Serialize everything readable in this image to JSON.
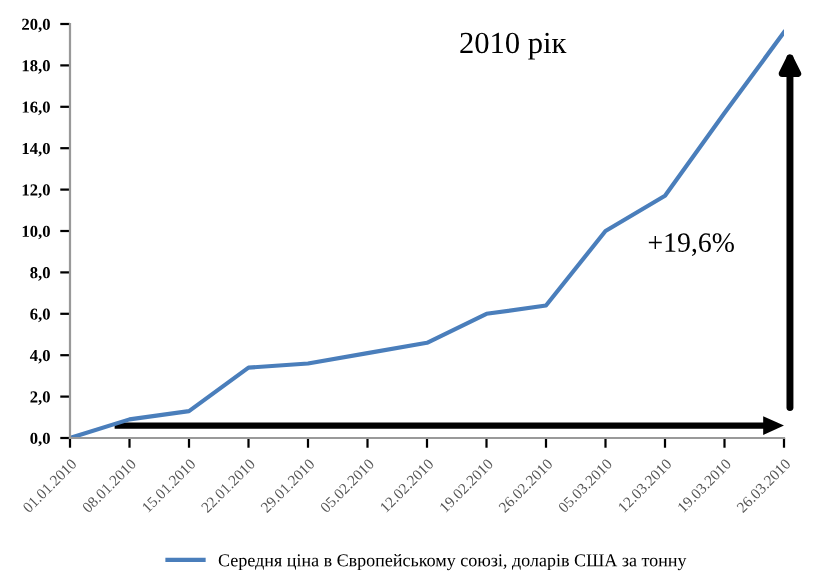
{
  "chart_data": {
    "type": "line",
    "title": "2010 рік",
    "categories": [
      "01.01.2010",
      "08.01.2010",
      "15.01.2010",
      "22.01.2010",
      "29.01.2010",
      "05.02.2010",
      "12.02.2010",
      "19.02.2010",
      "26.02.2010",
      "05.03.2010",
      "12.03.2010",
      "19.03.2010",
      "26.03.2010"
    ],
    "series": [
      {
        "name": "Середня ціна в Європейському союзі, доларів США за тонну",
        "color": "#4a7ebb",
        "values": [
          0,
          0.9,
          1.3,
          3.4,
          3.6,
          4.1,
          4.6,
          6.0,
          6.4,
          10.0,
          11.7,
          15.7,
          19.6
        ]
      }
    ],
    "ylim": [
      0,
      20
    ],
    "yticks": [
      {
        "value": 0,
        "label": "0,0"
      },
      {
        "value": 2,
        "label": "2,0"
      },
      {
        "value": 4,
        "label": "4,0"
      },
      {
        "value": 6,
        "label": "6,0"
      },
      {
        "value": 8,
        "label": "8,0"
      },
      {
        "value": 10,
        "label": "10,0"
      },
      {
        "value": 12,
        "label": "12,0"
      },
      {
        "value": 14,
        "label": "14,0"
      },
      {
        "value": 16,
        "label": "16,0"
      },
      {
        "value": 18,
        "label": "18,0"
      },
      {
        "value": 20,
        "label": "20,0"
      }
    ],
    "annotations": [
      "+19,6%"
    ],
    "legend": "bottom",
    "grid": false,
    "marker": "none",
    "line_style": "solid"
  }
}
